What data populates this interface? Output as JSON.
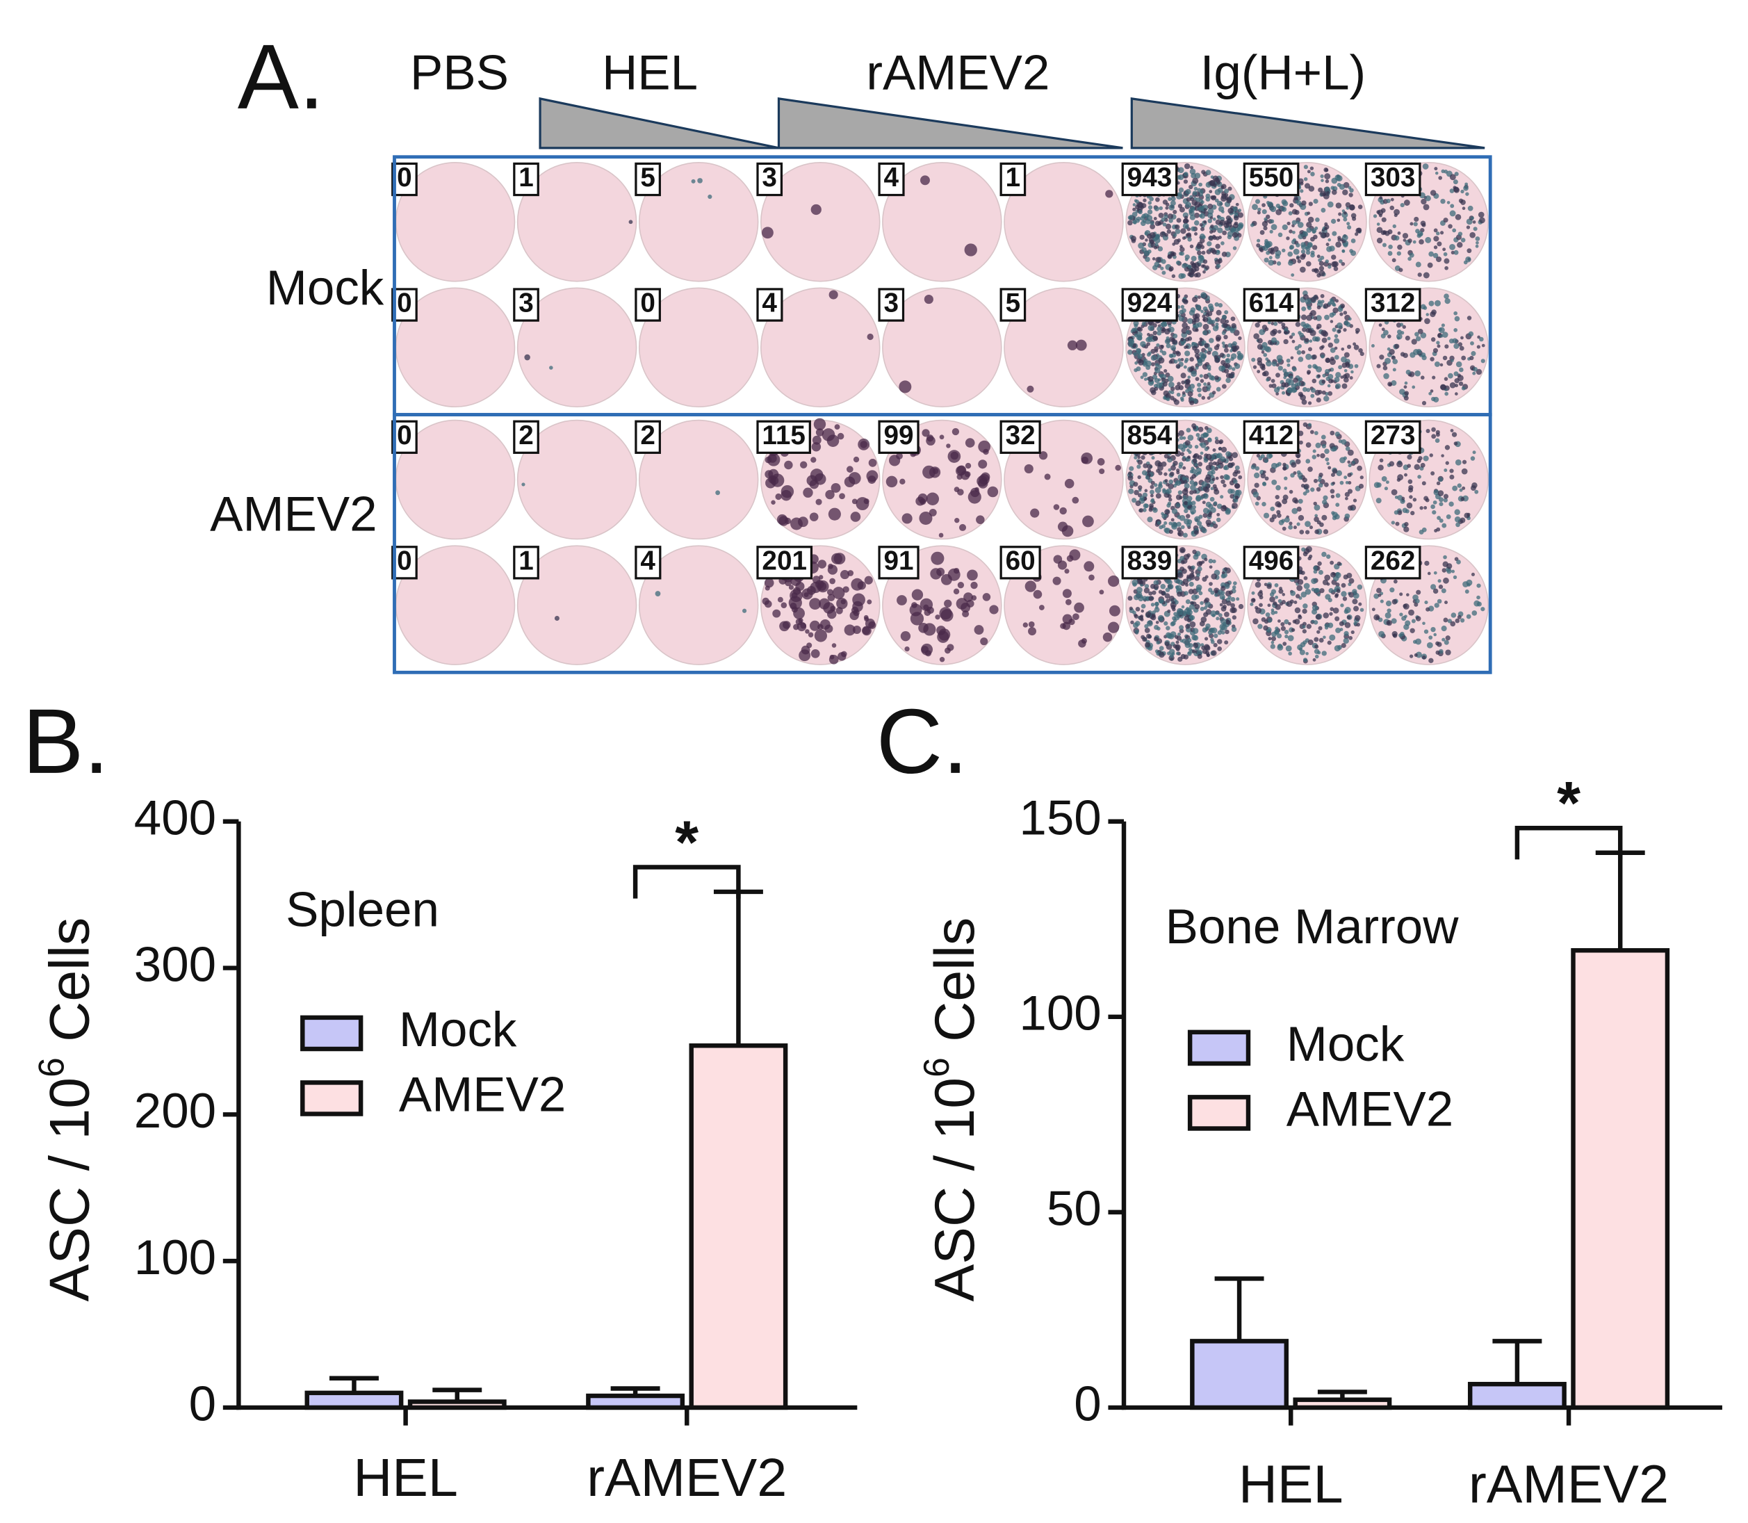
{
  "panel_a": {
    "label": "A.",
    "columns": [
      "PBS",
      "HEL",
      "rAMEV2",
      "Ig(H+L)"
    ],
    "rows": [
      "Mock",
      "AMEV2"
    ],
    "counts": [
      [
        0,
        1,
        5,
        3,
        4,
        1,
        943,
        550,
        303
      ],
      [
        0,
        3,
        0,
        4,
        3,
        5,
        924,
        614,
        312
      ],
      [
        0,
        2,
        2,
        115,
        99,
        32,
        854,
        412,
        273
      ],
      [
        0,
        1,
        4,
        201,
        91,
        60,
        839,
        496,
        262
      ]
    ]
  },
  "chart_data": [
    {
      "type": "bar",
      "panel_label": "B.",
      "title": "Spleen",
      "ylabel": {
        "text": "ASC / 10",
        "sup": "6",
        "after": " Cells"
      },
      "categories": [
        "HEL",
        "rAMEV2"
      ],
      "series": [
        {
          "name": "Mock",
          "color": "#c6c6f7",
          "values": [
            10,
            8
          ],
          "errors": [
            10,
            5
          ]
        },
        {
          "name": "AMEV2",
          "color": "#fde0e2",
          "values": [
            4,
            247
          ],
          "errors": [
            8,
            105
          ]
        }
      ],
      "ylim": [
        0,
        400
      ],
      "yticks": [
        0,
        100,
        200,
        300,
        400
      ],
      "annotation": "*"
    },
    {
      "type": "bar",
      "panel_label": "C.",
      "title": "Bone Marrow",
      "ylabel": {
        "text": "ASC / 10",
        "sup": "6",
        "after": " Cells"
      },
      "categories": [
        "HEL",
        "rAMEV2"
      ],
      "series": [
        {
          "name": "Mock",
          "color": "#c6c6f7",
          "values": [
            17,
            6
          ],
          "errors": [
            16,
            11
          ]
        },
        {
          "name": "AMEV2",
          "color": "#fde0e2",
          "values": [
            2,
            117
          ],
          "errors": [
            2,
            25
          ]
        }
      ],
      "ylim": [
        0,
        150
      ],
      "yticks": [
        0,
        50,
        100,
        150
      ],
      "annotation": "*"
    }
  ]
}
